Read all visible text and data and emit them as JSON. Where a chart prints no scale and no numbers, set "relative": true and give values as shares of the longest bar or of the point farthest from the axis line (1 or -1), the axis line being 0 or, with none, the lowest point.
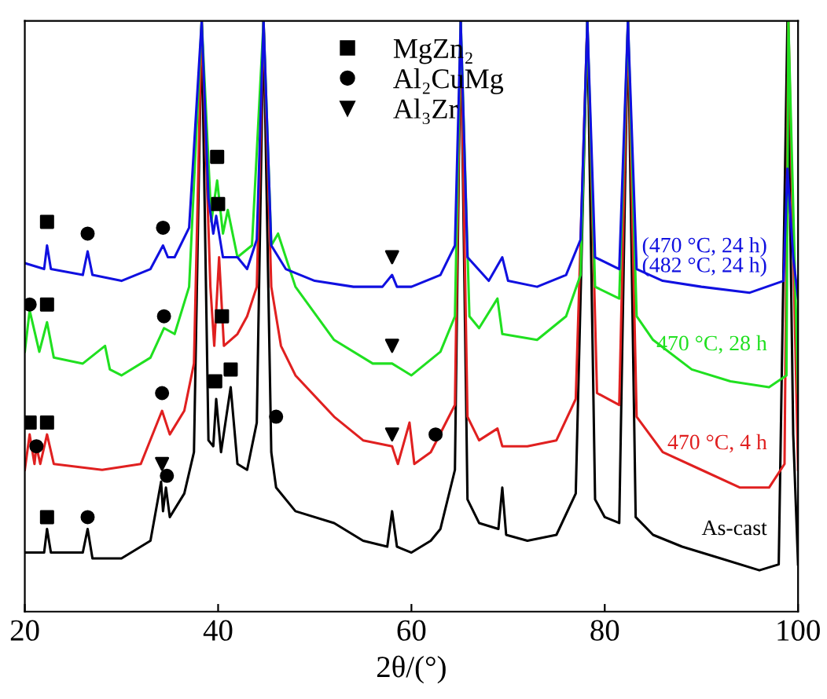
{
  "chart_data": {
    "type": "line",
    "relative": true,
    "xlabel": "2θ/(°)",
    "xlim": [
      20,
      100
    ],
    "xticks": [
      20,
      40,
      60,
      80,
      100
    ],
    "tick_labels": "x",
    "grid": false,
    "legend": "top",
    "series": [
      {
        "name": "As-cast",
        "color": "#000000",
        "x": [
          20,
          22,
          22.3,
          22.7,
          26,
          26.5,
          27,
          30,
          33,
          34.1,
          34.3,
          34.6,
          35,
          36.5,
          37.5,
          38.3,
          39,
          39.5,
          39.8,
          40.3,
          41.3,
          42,
          43,
          44,
          44.7,
          45.5,
          46,
          48,
          52,
          55,
          57.5,
          58,
          58.5,
          60,
          62,
          63,
          64.5,
          65.1,
          65.8,
          67,
          69,
          69.4,
          69.8,
          72,
          75,
          77,
          78.2,
          79,
          80,
          81.5,
          82.4,
          83.2,
          85,
          88,
          92,
          96,
          98,
          98.9,
          99.5,
          100
        ],
        "values": [
          0.1,
          0.1,
          0.14,
          0.1,
          0.1,
          0.14,
          0.09,
          0.09,
          0.12,
          0.22,
          0.17,
          0.21,
          0.16,
          0.2,
          0.27,
          1.0,
          0.29,
          0.28,
          0.36,
          0.27,
          0.38,
          0.25,
          0.24,
          0.32,
          1.0,
          0.27,
          0.21,
          0.17,
          0.15,
          0.12,
          0.11,
          0.17,
          0.11,
          0.1,
          0.12,
          0.14,
          0.24,
          1.0,
          0.19,
          0.15,
          0.14,
          0.21,
          0.13,
          0.12,
          0.13,
          0.2,
          1.0,
          0.19,
          0.16,
          0.15,
          1.0,
          0.16,
          0.13,
          0.11,
          0.09,
          0.07,
          0.08,
          1.0,
          0.3,
          0.08
        ]
      },
      {
        "name": "470 °C, 4 h",
        "color": "#e02020",
        "x": [
          20,
          20.5,
          21,
          21.2,
          21.6,
          22.3,
          23,
          28,
          32,
          34.2,
          35,
          36.5,
          37.5,
          38.3,
          39.2,
          39.6,
          40.1,
          40.6,
          42,
          43,
          44,
          44.7,
          45.5,
          46.5,
          48,
          52,
          55,
          58,
          58.6,
          59.8,
          60.3,
          62,
          64.5,
          65.1,
          65.8,
          67,
          68.9,
          69.4,
          72,
          75,
          77,
          78.2,
          79.2,
          81.5,
          82.4,
          83.3,
          86,
          90,
          94,
          97,
          98.6,
          99,
          100
        ],
        "values": [
          0.24,
          0.3,
          0.25,
          0.28,
          0.25,
          0.3,
          0.25,
          0.24,
          0.25,
          0.34,
          0.3,
          0.34,
          0.42,
          1.0,
          0.55,
          0.45,
          0.6,
          0.45,
          0.47,
          0.5,
          0.55,
          1.0,
          0.55,
          0.45,
          0.4,
          0.33,
          0.29,
          0.28,
          0.25,
          0.32,
          0.25,
          0.27,
          0.35,
          1.0,
          0.33,
          0.29,
          0.31,
          0.28,
          0.28,
          0.29,
          0.36,
          1.0,
          0.37,
          0.35,
          1.0,
          0.33,
          0.27,
          0.24,
          0.21,
          0.21,
          0.25,
          1.0,
          0.24
        ]
      },
      {
        "name": "470 °C, 28 h",
        "color": "#20e020",
        "x": [
          20,
          20.5,
          21.5,
          22.3,
          23,
          26,
          28.3,
          28.8,
          30,
          33,
          34.4,
          35.5,
          37,
          38.3,
          39.3,
          39.9,
          40.5,
          41,
          42,
          43.5,
          44.7,
          45.5,
          46.2,
          48,
          52,
          56,
          58,
          60,
          63,
          64.5,
          65.1,
          66,
          67,
          68.9,
          69.4,
          73,
          76,
          77.5,
          78.2,
          79,
          81.5,
          82.4,
          83.3,
          85,
          89,
          93,
          97,
          98.8,
          99,
          100
        ],
        "values": [
          0.44,
          0.51,
          0.44,
          0.49,
          0.43,
          0.42,
          0.45,
          0.41,
          0.4,
          0.43,
          0.48,
          0.47,
          0.55,
          1.0,
          0.66,
          0.73,
          0.64,
          0.68,
          0.6,
          0.62,
          1.0,
          0.62,
          0.64,
          0.55,
          0.46,
          0.42,
          0.42,
          0.4,
          0.44,
          0.5,
          1.0,
          0.5,
          0.48,
          0.53,
          0.47,
          0.46,
          0.5,
          0.57,
          1.0,
          0.55,
          0.53,
          1.0,
          0.5,
          0.46,
          0.41,
          0.39,
          0.38,
          0.4,
          1.0,
          0.37
        ]
      },
      {
        "name": "(470 °C, 24 h)\n(482 °C, 24 h)",
        "color": "#1010e0",
        "x": [
          20,
          22,
          22.3,
          22.7,
          26,
          26.5,
          27,
          30,
          33,
          34.3,
          34.8,
          35.5,
          37,
          38.3,
          39,
          39.5,
          39.8,
          40.5,
          42,
          43,
          44,
          44.7,
          45.5,
          47,
          50,
          54,
          57,
          58,
          58.5,
          60,
          63,
          64.5,
          65.1,
          65.8,
          68,
          69.4,
          70,
          73,
          76,
          77.5,
          78.2,
          79,
          81.5,
          82.4,
          83.3,
          86,
          90,
          95,
          98.5,
          98.9,
          99.5,
          100
        ],
        "values": [
          0.59,
          0.58,
          0.62,
          0.58,
          0.57,
          0.61,
          0.57,
          0.56,
          0.58,
          0.62,
          0.6,
          0.6,
          0.65,
          1.0,
          0.7,
          0.64,
          0.67,
          0.6,
          0.6,
          0.58,
          0.63,
          1.0,
          0.62,
          0.58,
          0.56,
          0.55,
          0.55,
          0.57,
          0.55,
          0.55,
          0.57,
          0.62,
          1.0,
          0.6,
          0.56,
          0.6,
          0.56,
          0.55,
          0.57,
          0.63,
          1.0,
          0.6,
          0.58,
          1.0,
          0.58,
          0.56,
          0.55,
          0.54,
          0.56,
          0.75,
          0.6,
          0.53
        ]
      },
      {
        "name": "MgZn₂",
        "type": "scatter",
        "marker": "square",
        "color": "#000000",
        "x": [
          22.3,
          40.0,
          22.3,
          39.9,
          20.5,
          22.3,
          40.4,
          22.3,
          39.7,
          41.3
        ],
        "values": [
          0.66,
          0.69,
          0.52,
          0.77,
          0.32,
          0.32,
          0.5,
          0.16,
          0.39,
          0.41
        ]
      },
      {
        "name": "Al₂CuMg",
        "type": "scatter",
        "marker": "circle",
        "color": "#000000",
        "x": [
          26.5,
          34.3,
          20.5,
          34.4,
          21.2,
          34.2,
          62.5,
          26.5,
          34.7,
          46
        ],
        "values": [
          0.64,
          0.65,
          0.52,
          0.5,
          0.28,
          0.37,
          0.3,
          0.16,
          0.23,
          0.33
        ]
      },
      {
        "name": "Al₃Zr",
        "type": "scatter",
        "marker": "triangle",
        "color": "#000000",
        "x": [
          58,
          58,
          58,
          34.2
        ],
        "values": [
          0.6,
          0.45,
          0.3,
          0.25
        ]
      }
    ]
  }
}
